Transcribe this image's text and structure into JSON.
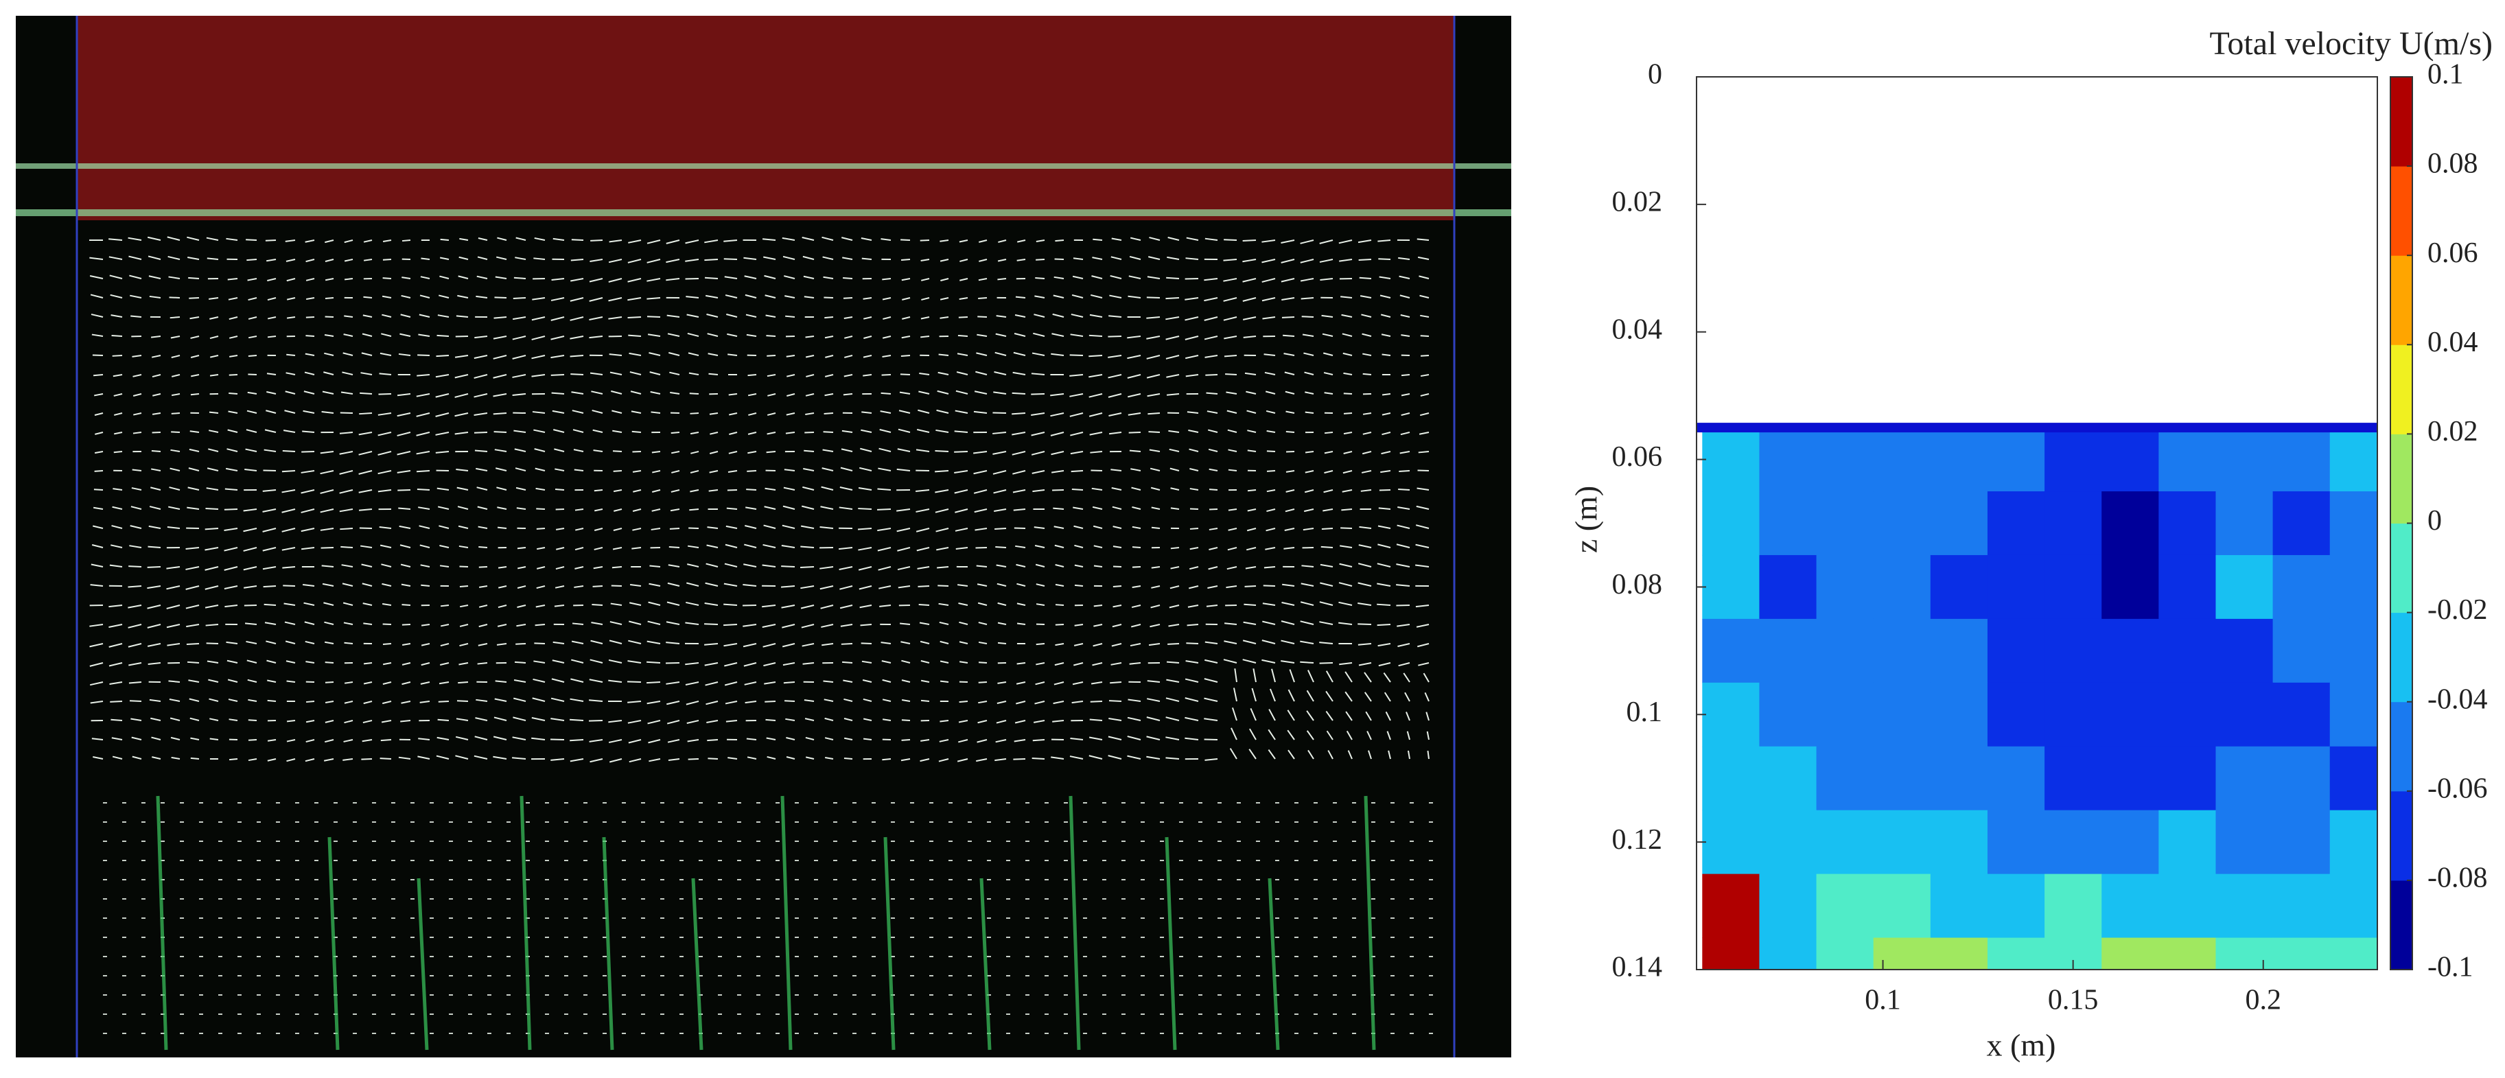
{
  "chart_data": {
    "type": "contour",
    "colorbar_title": "Total velocity U(m/s)",
    "xlabel": "x (m)",
    "ylabel": "z (m)",
    "xlim": [
      0.051,
      0.23
    ],
    "xticks": [
      0.1,
      0.15,
      0.2
    ],
    "ylim": [
      0,
      0.14
    ],
    "yticks": [
      0,
      0.02,
      0.04,
      0.06,
      0.08,
      0.1,
      0.12,
      0.14
    ],
    "y_direction": "reverse",
    "clim": [
      -0.1,
      0.1
    ],
    "cticks": [
      0.1,
      0.08,
      0.06,
      0.04,
      0.02,
      0,
      -0.02,
      -0.04,
      -0.06,
      -0.08,
      -0.1
    ],
    "colormap": [
      "#00009a",
      "#0a2fe6",
      "#1a7af0",
      "#18c0f2",
      "#50ecc8",
      "#a0e860",
      "#f0f020",
      "#ffa500",
      "#ff5000",
      "#b00000"
    ],
    "x": [
      0.06,
      0.075,
      0.09,
      0.105,
      0.12,
      0.135,
      0.15,
      0.165,
      0.18,
      0.195,
      0.21,
      0.225
    ],
    "z": [
      0.06,
      0.07,
      0.08,
      0.09,
      0.1,
      0.11,
      0.12,
      0.13,
      0.14
    ],
    "values": [
      [
        -0.03,
        -0.05,
        -0.05,
        -0.06,
        -0.05,
        -0.05,
        -0.07,
        -0.07,
        -0.05,
        -0.06,
        -0.05,
        -0.04
      ],
      [
        -0.02,
        -0.05,
        -0.05,
        -0.05,
        -0.06,
        -0.07,
        -0.07,
        -0.09,
        -0.07,
        -0.06,
        -0.07,
        -0.05
      ],
      [
        -0.04,
        -0.07,
        -0.05,
        -0.05,
        -0.07,
        -0.07,
        -0.07,
        -0.09,
        -0.07,
        -0.03,
        -0.05,
        -0.06
      ],
      [
        -0.05,
        -0.06,
        -0.05,
        -0.05,
        -0.06,
        -0.07,
        -0.07,
        -0.07,
        -0.07,
        -0.07,
        -0.05,
        -0.05
      ],
      [
        -0.03,
        -0.05,
        -0.06,
        -0.05,
        -0.05,
        -0.07,
        -0.07,
        -0.08,
        -0.07,
        -0.07,
        -0.07,
        -0.05
      ],
      [
        -0.03,
        -0.04,
        -0.05,
        -0.05,
        -0.05,
        -0.06,
        -0.07,
        -0.07,
        -0.07,
        -0.06,
        -0.06,
        -0.07
      ],
      [
        -0.03,
        -0.03,
        -0.03,
        -0.04,
        -0.04,
        -0.05,
        -0.05,
        -0.05,
        -0.04,
        -0.05,
        -0.05,
        -0.04
      ],
      [
        0.09,
        -0.03,
        -0.01,
        -0.01,
        -0.02,
        -0.02,
        -0.01,
        -0.02,
        -0.02,
        -0.02,
        -0.03,
        -0.02
      ],
      [
        0.09,
        -0.02,
        -0.01,
        0.01,
        0.01,
        -0.01,
        -0.01,
        0.01,
        0.01,
        -0.01,
        -0.01,
        -0.01
      ]
    ]
  }
}
